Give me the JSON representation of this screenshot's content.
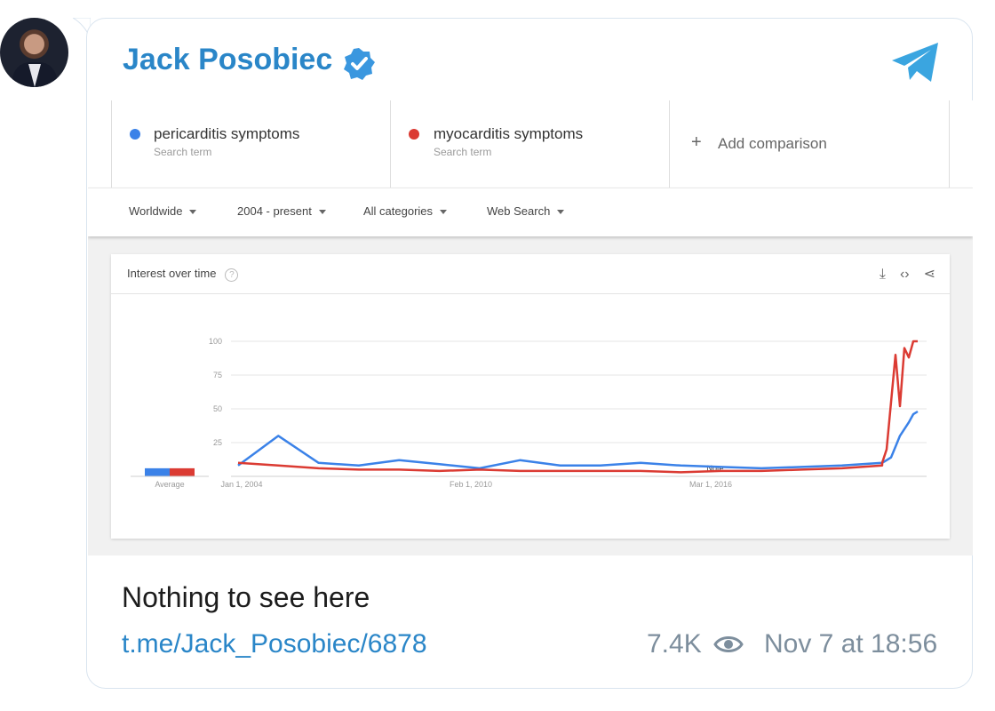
{
  "post": {
    "author": "Jack Posobiec",
    "caption": "Nothing to see here",
    "link": "t.me/Jack_Posobiec/6878",
    "views": "7.4K",
    "date": "Nov 7 at 18:56",
    "icons": [
      "avatar-photo",
      "verified-badge-icon",
      "telegram-icon",
      "eye-icon"
    ],
    "colors": {
      "name": "#2a86c8",
      "meta": "#7d8e9d",
      "border": "#d9e4ef"
    }
  },
  "trends": {
    "terms": [
      {
        "name": "pericarditis symptoms",
        "sub": "Search term",
        "color": "#3b82e8"
      },
      {
        "name": "myocarditis symptoms",
        "sub": "Search term",
        "color": "#db3b33"
      }
    ],
    "add_comparison": "Add comparison",
    "filters": [
      "Worldwide",
      "2004 - present",
      "All categories",
      "Web Search"
    ],
    "card_title": "Interest over time",
    "card_icons": [
      "download-icon",
      "embed-icon",
      "share-icon"
    ]
  },
  "chart_data": {
    "type": "line",
    "title": "Interest over time",
    "ylim": [
      0,
      100
    ],
    "yticks": [
      25,
      50,
      75,
      100
    ],
    "xticks": [
      "Jan 1, 2004",
      "Feb 1, 2010",
      "Mar 1, 2016"
    ],
    "average_label": "Average",
    "note_label": "Note",
    "average": [
      {
        "name": "pericarditis symptoms",
        "value": 6
      },
      {
        "name": "myocarditis symptoms",
        "value": 6
      }
    ],
    "x": [
      "2004",
      "2005",
      "2006",
      "2007",
      "2008",
      "2009",
      "2010",
      "2011",
      "2012",
      "2013",
      "2014",
      "2015",
      "2016",
      "2017",
      "2018",
      "2019",
      "2020",
      "2021-01",
      "2021-03",
      "2021-05",
      "2021-06",
      "2021-07",
      "2021-08",
      "2021-09",
      "2021-10",
      "2021-11"
    ],
    "series": [
      {
        "name": "pericarditis symptoms",
        "color": "#3b82e8",
        "values": [
          8,
          30,
          10,
          8,
          12,
          9,
          6,
          12,
          8,
          8,
          10,
          8,
          7,
          6,
          7,
          8,
          10,
          10,
          12,
          14,
          22,
          30,
          35,
          40,
          46,
          48
        ]
      },
      {
        "name": "myocarditis symptoms",
        "color": "#db3b33",
        "values": [
          10,
          8,
          6,
          5,
          5,
          4,
          5,
          4,
          4,
          4,
          4,
          3,
          4,
          4,
          5,
          6,
          8,
          10,
          20,
          55,
          90,
          52,
          95,
          88,
          100,
          100
        ]
      }
    ]
  }
}
